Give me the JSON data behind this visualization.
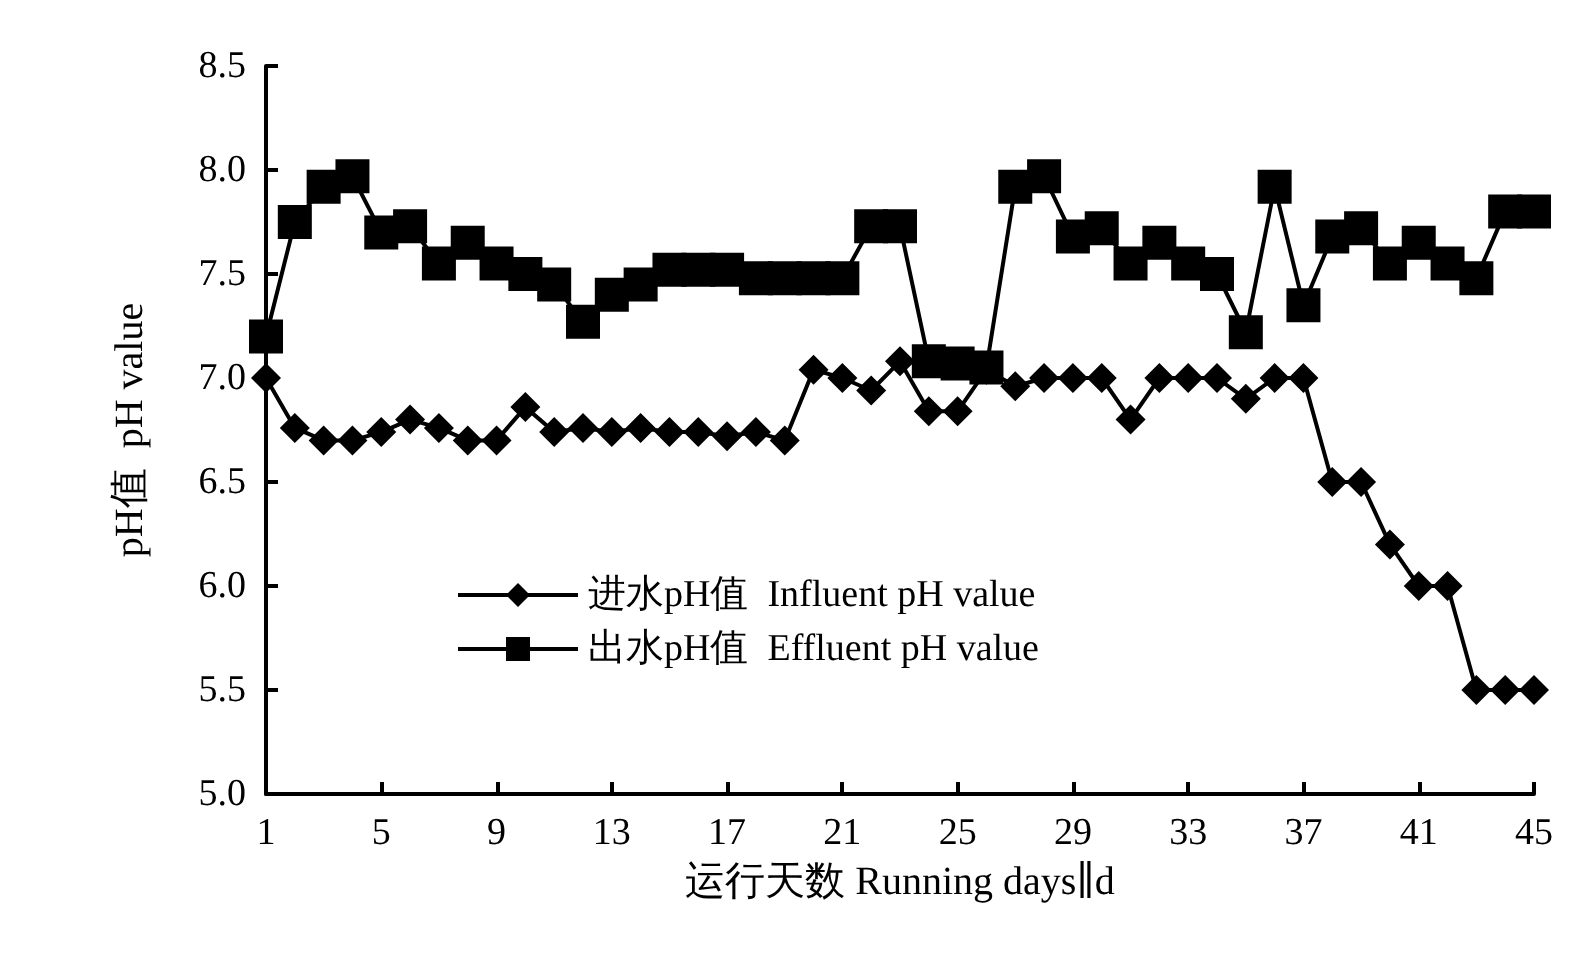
{
  "chart_data": {
    "type": "line",
    "xlabel": "运行天数 Running days∥d",
    "ylabel": "pH值  pH value",
    "x": [
      1,
      2,
      3,
      4,
      5,
      6,
      7,
      8,
      9,
      10,
      11,
      12,
      13,
      14,
      15,
      16,
      17,
      18,
      19,
      20,
      21,
      22,
      23,
      24,
      25,
      26,
      27,
      28,
      29,
      30,
      31,
      32,
      33,
      34,
      35,
      36,
      37,
      38,
      39,
      40,
      41,
      42,
      43,
      44,
      45
    ],
    "series": [
      {
        "name": "进水pH值  Influent pH value",
        "color": "#000000",
        "marker": "diamond",
        "values": [
          7.0,
          6.76,
          6.7,
          6.7,
          6.74,
          6.8,
          6.76,
          6.7,
          6.7,
          6.86,
          6.74,
          6.76,
          6.74,
          6.76,
          6.74,
          6.74,
          6.72,
          6.74,
          6.7,
          7.04,
          7.0,
          6.94,
          7.08,
          6.84,
          6.84,
          7.04,
          6.96,
          7.0,
          7.0,
          7.0,
          6.8,
          7.0,
          7.0,
          7.0,
          6.9,
          7.0,
          7.0,
          6.5,
          6.5,
          6.2,
          6.0,
          6.0,
          5.5,
          5.5,
          5.5
        ]
      },
      {
        "name": "出水pH值  Effluent pH value",
        "color": "#000000",
        "marker": "square",
        "values": [
          7.2,
          7.75,
          7.92,
          7.97,
          7.7,
          7.73,
          7.55,
          7.65,
          7.55,
          7.5,
          7.45,
          7.27,
          7.4,
          7.45,
          7.52,
          7.52,
          7.52,
          7.48,
          7.48,
          7.48,
          7.48,
          7.73,
          7.73,
          7.08,
          7.07,
          7.05,
          7.92,
          7.97,
          7.68,
          7.72,
          7.55,
          7.65,
          7.55,
          7.5,
          7.22,
          7.92,
          7.35,
          7.68,
          7.72,
          7.55,
          7.65,
          7.55,
          7.48,
          7.8,
          7.8
        ]
      }
    ],
    "xlim": [
      1,
      45
    ],
    "xticks": [
      1,
      5,
      9,
      13,
      17,
      21,
      25,
      29,
      33,
      37,
      41,
      45
    ],
    "ylim": [
      5,
      8.5
    ],
    "yticks": [
      {
        "value": 5,
        "label": "5.0"
      },
      {
        "value": 5.5,
        "label": "5.5"
      },
      {
        "value": 6,
        "label": "6.0"
      },
      {
        "value": 6.5,
        "label": "6.5"
      },
      {
        "value": 7,
        "label": "7.0"
      },
      {
        "value": 7.5,
        "label": "7.5"
      },
      {
        "value": 8,
        "label": "8.0"
      },
      {
        "value": 8.5,
        "label": "8.5"
      }
    ],
    "grid": false,
    "legend": "center",
    "line_style": "solid"
  }
}
